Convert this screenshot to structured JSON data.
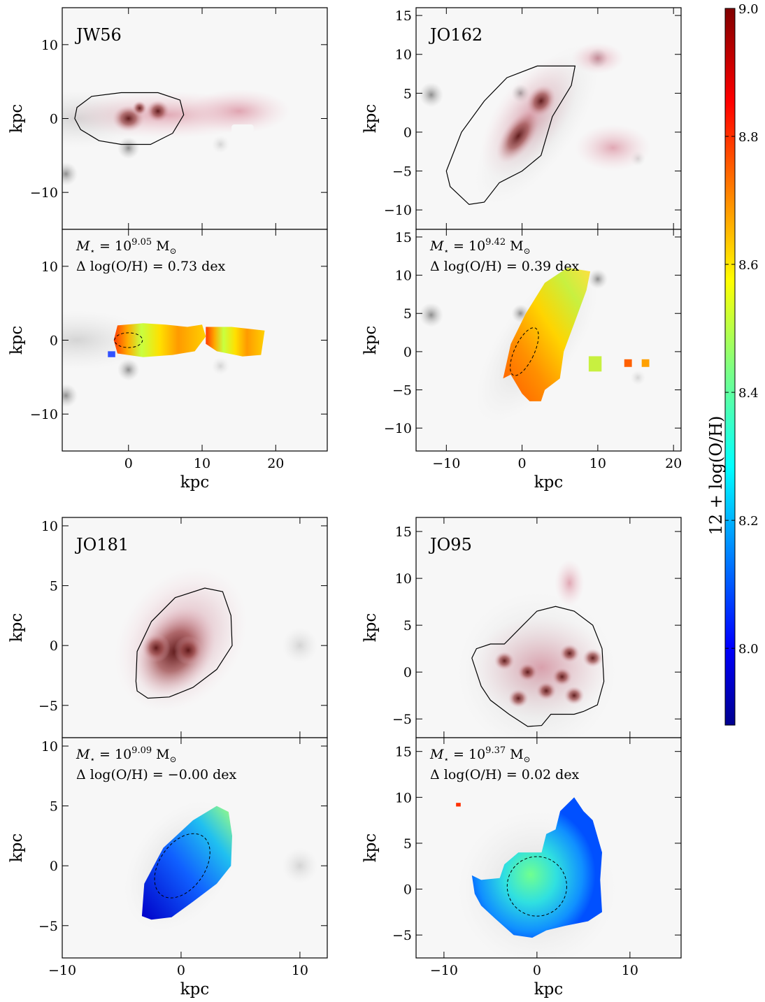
{
  "chart_data": [
    {
      "type": "image-map",
      "galaxy": "JW56",
      "map": "halpha",
      "x_range": [
        -9,
        27
      ],
      "y_range": [
        -15,
        15
      ],
      "x_ticks": [
        0,
        10,
        20
      ],
      "y_ticks": [
        -10,
        0,
        10
      ],
      "ylabel": "kpc",
      "xlabel": "",
      "annotation": []
    },
    {
      "type": "image-map",
      "galaxy": "",
      "map": "metallicity",
      "x_range": [
        -9,
        27
      ],
      "y_range": [
        -15,
        15
      ],
      "x_ticks": [
        0,
        10,
        20
      ],
      "y_ticks": [
        -10,
        0,
        10
      ],
      "ylabel": "kpc",
      "xlabel": "kpc",
      "annotation": [
        "M⋆ = 10^9.05 M⊙",
        "Δ log(O/H) = 0.73 dex"
      ],
      "mass_exp": "9.05",
      "delta": "0.73"
    },
    {
      "type": "image-map",
      "galaxy": "JO162",
      "map": "halpha",
      "x_range": [
        -14,
        21
      ],
      "y_range": [
        -12.5,
        16
      ],
      "x_ticks": [
        -10,
        0,
        10,
        20
      ],
      "y_ticks": [
        -10,
        -5,
        0,
        5,
        10,
        15
      ],
      "ylabel": "kpc",
      "xlabel": "",
      "annotation": []
    },
    {
      "type": "image-map",
      "galaxy": "",
      "map": "metallicity",
      "x_range": [
        -14,
        21
      ],
      "y_range": [
        -13,
        16
      ],
      "x_ticks": [
        -10,
        0,
        10,
        20
      ],
      "y_ticks": [
        -10,
        -5,
        0,
        5,
        10,
        15
      ],
      "ylabel": "kpc",
      "xlabel": "kpc",
      "annotation": [
        "M⋆ = 10^9.42 M⊙",
        "Δ log(O/H) = 0.39 dex"
      ],
      "mass_exp": "9.42",
      "delta": "0.39"
    },
    {
      "type": "image-map",
      "galaxy": "JO181",
      "map": "halpha",
      "x_range": [
        -10,
        12.3
      ],
      "y_range": [
        -7.7,
        10.7
      ],
      "x_ticks": [
        -10,
        0,
        10
      ],
      "y_ticks": [
        -5,
        0,
        5,
        10
      ],
      "ylabel": "kpc",
      "xlabel": "",
      "annotation": []
    },
    {
      "type": "image-map",
      "galaxy": "",
      "map": "metallicity",
      "x_range": [
        -10,
        12.3
      ],
      "y_range": [
        -7.7,
        10.7
      ],
      "x_ticks": [
        -10,
        0,
        10
      ],
      "y_ticks": [
        -5,
        0,
        5,
        10
      ],
      "ylabel": "kpc",
      "xlabel": "kpc",
      "annotation": [
        "M⋆ = 10^9.09 M⊙",
        "Δ log(O/H) = −0.00 dex"
      ],
      "mass_exp": "9.09",
      "delta": "−0.00"
    },
    {
      "type": "image-map",
      "galaxy": "JO95",
      "map": "halpha",
      "x_range": [
        -13,
        15.5
      ],
      "y_range": [
        -7,
        16.5
      ],
      "x_ticks": [
        -10,
        0,
        10
      ],
      "y_ticks": [
        -5,
        0,
        5,
        10,
        15
      ],
      "ylabel": "kpc",
      "xlabel": "",
      "annotation": []
    },
    {
      "type": "image-map",
      "galaxy": "",
      "map": "metallicity",
      "x_range": [
        -13,
        15.5
      ],
      "y_range": [
        -7.5,
        16.5
      ],
      "x_ticks": [
        -10,
        0,
        10
      ],
      "y_ticks": [
        -5,
        0,
        5,
        10,
        15
      ],
      "ylabel": "kpc",
      "xlabel": "kpc",
      "annotation": [
        "M⋆ = 10^9.37 M⊙",
        "Δ log(O/H) = 0.02 dex"
      ],
      "mass_exp": "9.37",
      "delta": "0.02"
    }
  ],
  "colorbar": {
    "label": "12 + log(O/H)",
    "range": [
      7.88,
      9.0
    ],
    "ticks": [
      8.0,
      8.2,
      8.4,
      8.6,
      8.8,
      9.0
    ],
    "tick_labels": [
      "8.0",
      "8.2",
      "8.4",
      "8.6",
      "8.8",
      "9.0"
    ],
    "colormap": "jet"
  },
  "colors": {
    "halpha": "#8b2e2e",
    "background": "#9e9e9e"
  }
}
